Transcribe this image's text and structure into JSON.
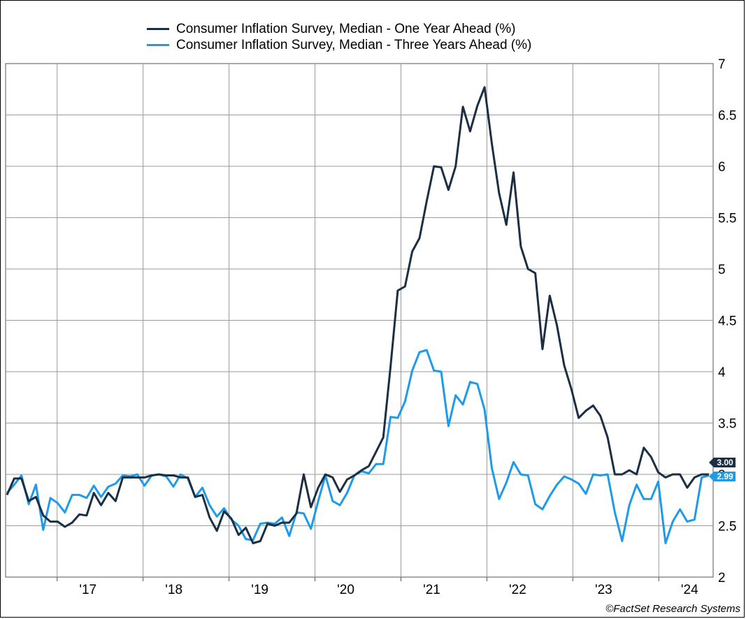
{
  "legend": [
    {
      "label": "Consumer Inflation Survey, Median - One Year Ahead (%)",
      "color": "#1a2e44"
    },
    {
      "label": "Consumer Inflation Survey, Median - Three Years Ahead (%)",
      "color": "#1e9be8"
    }
  ],
  "credit": "©FactSet Research Systems",
  "chart_data": {
    "type": "line",
    "title": "",
    "xlabel": "",
    "ylabel": "",
    "ylim": [
      2,
      7
    ],
    "yticks": [
      2,
      2.5,
      3,
      3.5,
      4,
      4.5,
      5,
      5.5,
      6,
      6.5,
      7
    ],
    "ytick_labels": [
      "2",
      "2.5",
      "3",
      "3.5",
      "4",
      "4.5",
      "5",
      "5.5",
      "6",
      "6.5",
      "7"
    ],
    "x_start": "2016-06",
    "x_end": "2024-08",
    "x_ticks": [
      "'17",
      "'18",
      "'19",
      "'20",
      "'21",
      "'22",
      "'23",
      "'24"
    ],
    "grid": true,
    "series": [
      {
        "name": "Consumer Inflation Survey, Median - One Year Ahead (%)",
        "color": "#1a2e44",
        "last_label": "3.00",
        "values": [
          2.8,
          2.96,
          2.96,
          2.74,
          2.78,
          2.6,
          2.54,
          2.54,
          2.49,
          2.53,
          2.61,
          2.6,
          2.82,
          2.7,
          2.82,
          2.74,
          2.97,
          2.97,
          2.97,
          2.97,
          2.99,
          3.0,
          2.99,
          2.99,
          2.97,
          2.97,
          2.78,
          2.8,
          2.58,
          2.45,
          2.64,
          2.57,
          2.41,
          2.48,
          2.33,
          2.35,
          2.52,
          2.5,
          2.53,
          2.53,
          2.62,
          3.0,
          2.68,
          2.87,
          3.0,
          2.97,
          2.83,
          2.95,
          2.99,
          3.04,
          3.08,
          3.22,
          3.36,
          4.05,
          4.79,
          4.83,
          5.17,
          5.3,
          5.66,
          6.0,
          5.99,
          5.77,
          6.0,
          6.58,
          6.34,
          6.59,
          6.77,
          6.22,
          5.74,
          5.43,
          5.94,
          5.22,
          5.0,
          4.96,
          4.22,
          4.74,
          4.45,
          4.06,
          3.83,
          3.55,
          3.62,
          3.67,
          3.57,
          3.36,
          3.0,
          3.0,
          3.04,
          3.0,
          3.26,
          3.17,
          3.02,
          2.97,
          3.0,
          3.0,
          2.87,
          2.97,
          3.0,
          3.0
        ]
      },
      {
        "name": "Consumer Inflation Survey, Median - Three Years Ahead (%)",
        "color": "#1e9be8",
        "last_label": "2.99",
        "values": [
          2.82,
          2.9,
          2.99,
          2.71,
          2.9,
          2.46,
          2.77,
          2.72,
          2.63,
          2.8,
          2.8,
          2.77,
          2.89,
          2.78,
          2.88,
          2.91,
          2.99,
          2.98,
          3.0,
          2.89,
          2.99,
          3.0,
          2.98,
          2.88,
          3.0,
          2.96,
          2.78,
          2.87,
          2.7,
          2.59,
          2.67,
          2.56,
          2.5,
          2.37,
          2.36,
          2.52,
          2.53,
          2.52,
          2.58,
          2.4,
          2.63,
          2.62,
          2.47,
          2.74,
          2.99,
          2.74,
          2.7,
          2.82,
          2.99,
          3.03,
          3.01,
          3.1,
          3.1,
          3.56,
          3.55,
          3.71,
          4.01,
          4.19,
          4.21,
          4.01,
          4.0,
          3.47,
          3.77,
          3.68,
          3.9,
          3.88,
          3.63,
          3.06,
          2.76,
          2.92,
          3.12,
          3.0,
          2.99,
          2.71,
          2.66,
          2.79,
          2.9,
          2.98,
          2.95,
          2.91,
          2.81,
          3.0,
          2.99,
          3.0,
          2.63,
          2.35,
          2.7,
          2.9,
          2.76,
          2.76,
          2.93,
          2.33,
          2.54,
          2.66,
          2.54,
          2.56,
          2.97,
          2.99
        ]
      }
    ]
  }
}
